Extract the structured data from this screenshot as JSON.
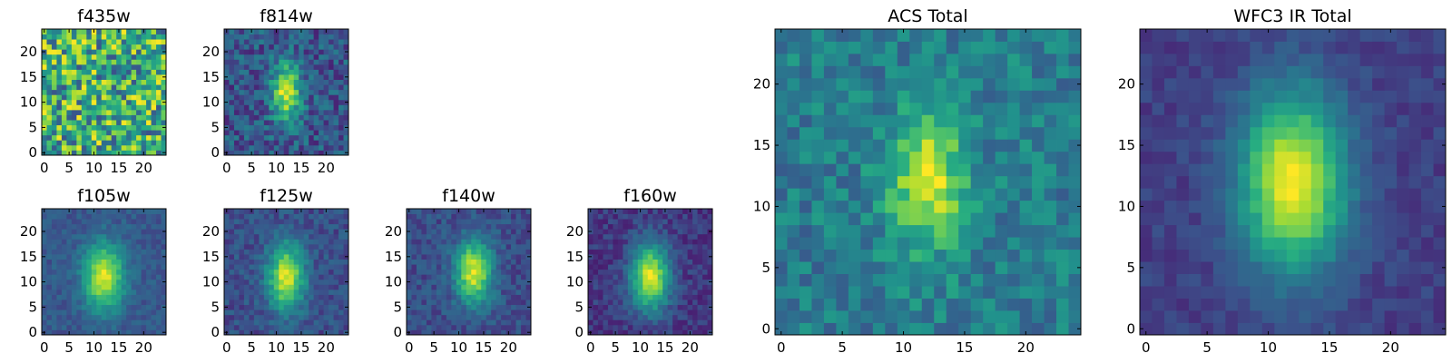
{
  "chart_data": [
    {
      "type": "heatmap",
      "title": "f435w",
      "colormap": "viridis",
      "pattern": "noise",
      "seed": 11,
      "xlim": [
        -0.5,
        24.5
      ],
      "ylim": [
        -0.5,
        24.5
      ],
      "xticks": [
        0,
        5,
        10,
        15,
        20
      ],
      "yticks": [
        0,
        5,
        10,
        15,
        20
      ],
      "grid": false,
      "description_values": "pixel flux, normalized 0-1"
    },
    {
      "type": "heatmap",
      "title": "f814w",
      "colormap": "viridis",
      "pattern": "source",
      "peak": 0.95,
      "background": 0.28,
      "noise": 0.16,
      "sigma_x": 2.0,
      "sigma_y": 4.0,
      "center": [
        12,
        12
      ],
      "seed": 23,
      "xlim": [
        -0.5,
        24.5
      ],
      "ylim": [
        -0.5,
        24.5
      ],
      "xticks": [
        0,
        5,
        10,
        15,
        20
      ],
      "yticks": [
        0,
        5,
        10,
        15,
        20
      ],
      "grid": false
    },
    {
      "type": "heatmap",
      "title": "f105w",
      "colormap": "viridis",
      "pattern": "source",
      "peak": 0.95,
      "background": 0.28,
      "noise": 0.07,
      "sigma_x": 2.8,
      "sigma_y": 4.5,
      "center": [
        12,
        11
      ],
      "seed": 37,
      "xlim": [
        -0.5,
        24.5
      ],
      "ylim": [
        -0.5,
        24.5
      ],
      "xticks": [
        0,
        5,
        10,
        15,
        20
      ],
      "yticks": [
        0,
        5,
        10,
        15,
        20
      ],
      "grid": false
    },
    {
      "type": "heatmap",
      "title": "f125w",
      "colormap": "viridis",
      "pattern": "source",
      "peak": 0.95,
      "background": 0.25,
      "noise": 0.09,
      "sigma_x": 2.5,
      "sigma_y": 4.5,
      "center": [
        12,
        11
      ],
      "seed": 41,
      "xlim": [
        -0.5,
        24.5
      ],
      "ylim": [
        -0.5,
        24.5
      ],
      "xticks": [
        0,
        5,
        10,
        15,
        20
      ],
      "yticks": [
        0,
        5,
        10,
        15,
        20
      ],
      "grid": false
    },
    {
      "type": "heatmap",
      "title": "f140w",
      "colormap": "viridis",
      "pattern": "source",
      "peak": 0.95,
      "background": 0.25,
      "noise": 0.09,
      "sigma_x": 2.5,
      "sigma_y": 4.3,
      "center": [
        13,
        12
      ],
      "seed": 53,
      "xlim": [
        -0.5,
        24.5
      ],
      "ylim": [
        -0.5,
        24.5
      ],
      "xticks": [
        0,
        5,
        10,
        15,
        20
      ],
      "yticks": [
        0,
        5,
        10,
        15,
        20
      ],
      "grid": false
    },
    {
      "type": "heatmap",
      "title": "f160w",
      "colormap": "viridis",
      "pattern": "source",
      "peak": 0.95,
      "background": 0.18,
      "noise": 0.08,
      "sigma_x": 2.7,
      "sigma_y": 4.6,
      "center": [
        12,
        11
      ],
      "seed": 67,
      "xlim": [
        -0.5,
        24.5
      ],
      "ylim": [
        -0.5,
        24.5
      ],
      "xticks": [
        0,
        5,
        10,
        15,
        20
      ],
      "yticks": [
        0,
        5,
        10,
        15,
        20
      ],
      "grid": false
    },
    {
      "type": "heatmap",
      "title": "ACS Total",
      "colormap": "viridis",
      "pattern": "source",
      "peak": 0.95,
      "background": 0.42,
      "noise": 0.14,
      "sigma_x": 2.2,
      "sigma_y": 3.8,
      "center": [
        12,
        12
      ],
      "seed": 79,
      "xlim": [
        -0.5,
        24.5
      ],
      "ylim": [
        -0.5,
        24.5
      ],
      "xticks": [
        0,
        5,
        10,
        15,
        20
      ],
      "yticks": [
        0,
        5,
        10,
        15,
        20
      ],
      "grid": false
    },
    {
      "type": "heatmap",
      "title": "WFC3 IR Total",
      "colormap": "viridis",
      "pattern": "source",
      "peak": 1.0,
      "background": 0.2,
      "noise": 0.05,
      "sigma_x": 3.0,
      "sigma_y": 5.0,
      "center": [
        12,
        12
      ],
      "seed": 89,
      "xlim": [
        -0.5,
        24.5
      ],
      "ylim": [
        -0.5,
        24.5
      ],
      "xticks": [
        0,
        5,
        10,
        15,
        20
      ],
      "yticks": [
        0,
        5,
        10,
        15,
        20
      ],
      "grid": false
    }
  ]
}
